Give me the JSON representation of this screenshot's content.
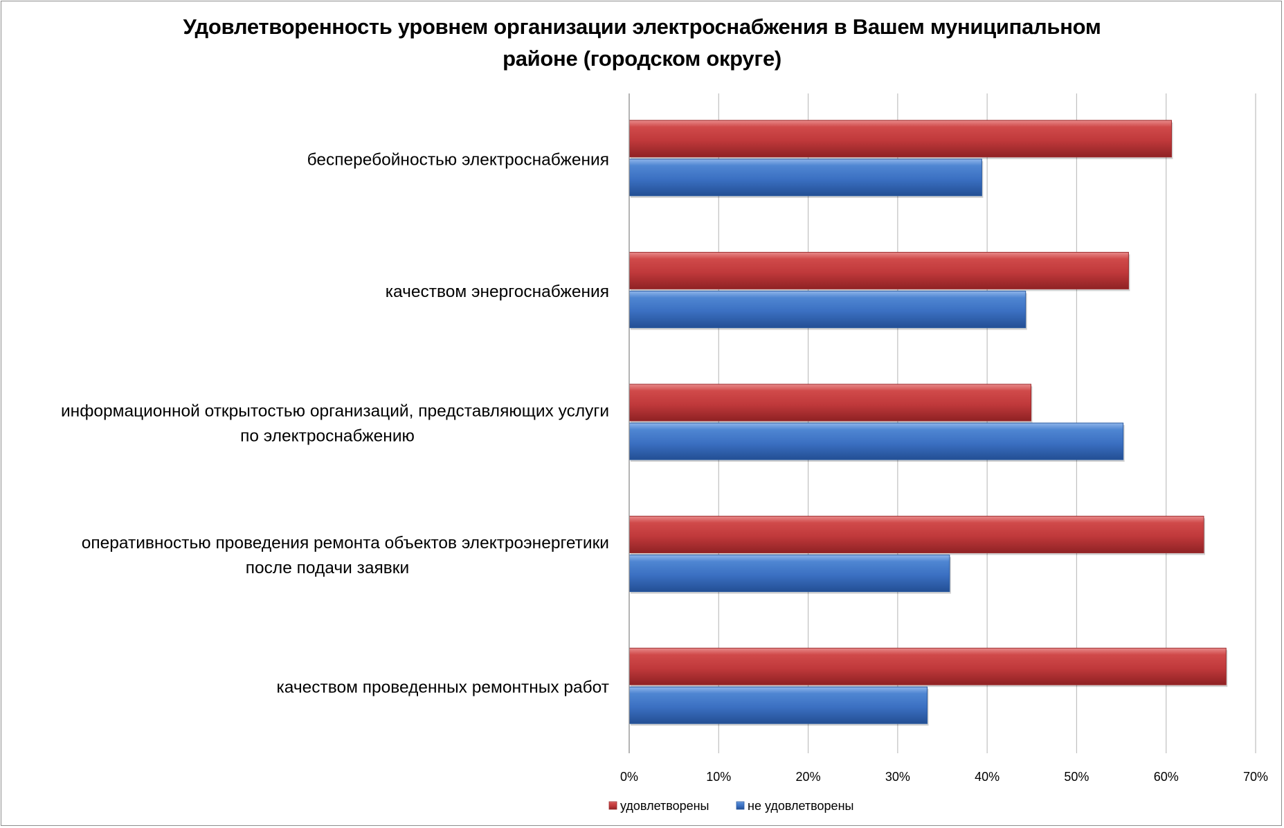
{
  "chart_data": {
    "type": "bar",
    "orientation": "horizontal",
    "title_lines": [
      "Удовлетворенность уровнем организации электроснабжения в Вашем муниципальном",
      "районе (городском округе)"
    ],
    "categories": [
      [
        "бесперебойностью  электроснабжения"
      ],
      [
        "качеством энергоснабжения"
      ],
      [
        "информационной открытостью организаций, представляющих услуги",
        "по электроснабжению"
      ],
      [
        "оперативностью проведения ремонта объектов электроэнергетики",
        "после подачи заявки"
      ],
      [
        "качеством проведенных ремонтных работ"
      ]
    ],
    "series": [
      {
        "name": "удовлетворены",
        "color": "#c0393b",
        "values": [
          60.6,
          55.8,
          44.9,
          64.2,
          66.7
        ]
      },
      {
        "name": "не удовлетворены",
        "color": "#3b70c2",
        "values": [
          39.4,
          44.3,
          55.2,
          35.8,
          33.3
        ]
      }
    ],
    "xlim": [
      0,
      70
    ],
    "xticks": [
      "0%",
      "10%",
      "20%",
      "30%",
      "40%",
      "50%",
      "60%",
      "70%"
    ],
    "grid": true,
    "legend_position": "bottom"
  }
}
